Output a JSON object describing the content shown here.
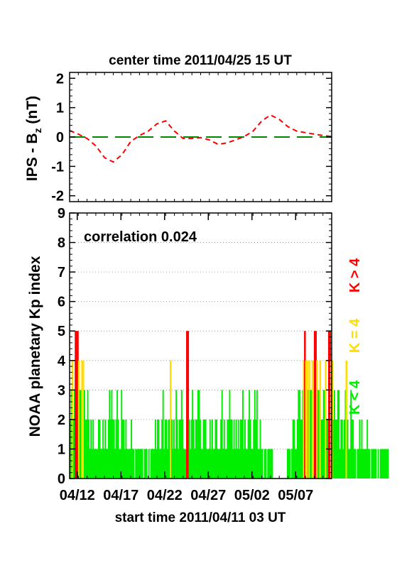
{
  "chart_data": [
    {
      "type": "line",
      "title": "center time 2011/04/25 15 UT",
      "ylabel_main": "IPS - B",
      "ylabel_sub": "z",
      "ylabel_unit": " (nT)",
      "ylim": [
        -2.2,
        2.2
      ],
      "yticks": [
        "2",
        "1",
        "0",
        "-1",
        "-2"
      ],
      "ytick_values": [
        2,
        1,
        0,
        -1,
        -2
      ],
      "xlim": [
        0,
        30
      ],
      "series": [
        {
          "color": "#ff0000",
          "style": "dashed",
          "x": [
            0,
            1,
            2,
            3,
            4,
            5,
            6,
            7,
            8,
            9,
            10,
            11,
            12,
            13,
            14,
            15,
            16,
            17,
            18,
            19,
            20,
            21,
            22,
            23,
            24,
            25,
            26,
            27,
            28,
            29,
            30
          ],
          "y": [
            0.22,
            0.1,
            -0.05,
            -0.3,
            -0.7,
            -0.85,
            -0.6,
            -0.15,
            0.05,
            0.2,
            0.45,
            0.55,
            0.2,
            -0.05,
            -0.05,
            -0.02,
            -0.1,
            -0.25,
            -0.2,
            -0.1,
            0.02,
            0.2,
            0.55,
            0.75,
            0.6,
            0.35,
            0.2,
            0.15,
            0.1,
            0.05,
            0.02
          ]
        },
        {
          "color": "#008800",
          "style": "long-dashed",
          "x": [
            0,
            30
          ],
          "y": [
            0,
            0
          ]
        }
      ]
    },
    {
      "type": "bar",
      "ylabel": "NOAA planetary Kp index",
      "xlabel": "start time 2011/04/11 03 UT",
      "annotation": "correlation 0.024",
      "ylim": [
        0,
        9
      ],
      "yticks": [
        "0",
        "1",
        "2",
        "3",
        "4",
        "5",
        "6",
        "7",
        "8",
        "9"
      ],
      "xticks": [
        "04/12",
        "04/17",
        "04/22",
        "04/27",
        "05/02",
        "05/07"
      ],
      "xtick_values": [
        0.875,
        5.875,
        10.875,
        15.875,
        20.875,
        25.875
      ],
      "xlim": [
        0,
        30
      ],
      "bar_width_days": 0.125,
      "legend": [
        "K < 4",
        "K = 4",
        "K > 4"
      ],
      "colors": {
        "low": "#00ee00",
        "mid": "#ffdd00",
        "high": "#ff0000"
      },
      "values": [
        2,
        3,
        4,
        2,
        3,
        5,
        5,
        5,
        4,
        3,
        3,
        4,
        4,
        3,
        2,
        2,
        3,
        2,
        1,
        2,
        1,
        2,
        1,
        1,
        1,
        1,
        2,
        2,
        1,
        1,
        2,
        1,
        2,
        1,
        1,
        2,
        3,
        2,
        3,
        2,
        2,
        1,
        2,
        3,
        2,
        1,
        1,
        3,
        2,
        2,
        1,
        2,
        1,
        1,
        1,
        1,
        2,
        1,
        1,
        0,
        1,
        1,
        1,
        1,
        1,
        1,
        1,
        0,
        1,
        1,
        1,
        0,
        1,
        0,
        1,
        1,
        1,
        1,
        2,
        1,
        2,
        2,
        1,
        1,
        2,
        3,
        1,
        2,
        2,
        1,
        2,
        2,
        4,
        2,
        1,
        2,
        1,
        3,
        2,
        1,
        2,
        2,
        3,
        2,
        1,
        1,
        1,
        5,
        5,
        2,
        1,
        2,
        3,
        2,
        1,
        2,
        2,
        3,
        3,
        2,
        1,
        1,
        2,
        2,
        2,
        1,
        1,
        1,
        2,
        1,
        2,
        1,
        1,
        2,
        2,
        1,
        1,
        1,
        2,
        3,
        1,
        2,
        1,
        1,
        2,
        2,
        3,
        2,
        2,
        1,
        2,
        1,
        2,
        1,
        2,
        1,
        2,
        2,
        3,
        1,
        2,
        1,
        1,
        2,
        3,
        2,
        1,
        1,
        2,
        3,
        2,
        3,
        1,
        1,
        2,
        1,
        1,
        0,
        1,
        1,
        0,
        1,
        1,
        1,
        1,
        1,
        0,
        0,
        0,
        0,
        0,
        0,
        0,
        0,
        0,
        0,
        0,
        0,
        0,
        1,
        1,
        1,
        0,
        1,
        2,
        2,
        1,
        1,
        2,
        3,
        3,
        2,
        2,
        3,
        4,
        5,
        4,
        4,
        3,
        4,
        3,
        3,
        4,
        4,
        5,
        5,
        4,
        3,
        3,
        4,
        2,
        2,
        3,
        3,
        4,
        2,
        2,
        5,
        5,
        4,
        4,
        2,
        3,
        2,
        2,
        3,
        3,
        1,
        2,
        2,
        1,
        2,
        3,
        4,
        2,
        1,
        1,
        3,
        2,
        2,
        1,
        1,
        0,
        1,
        1,
        2,
        1,
        2,
        1,
        1,
        1,
        1,
        2,
        1,
        1,
        0,
        1,
        1,
        1,
        1,
        1,
        0,
        1,
        0,
        1,
        1,
        1,
        1,
        1,
        1,
        1,
        1
      ]
    }
  ]
}
